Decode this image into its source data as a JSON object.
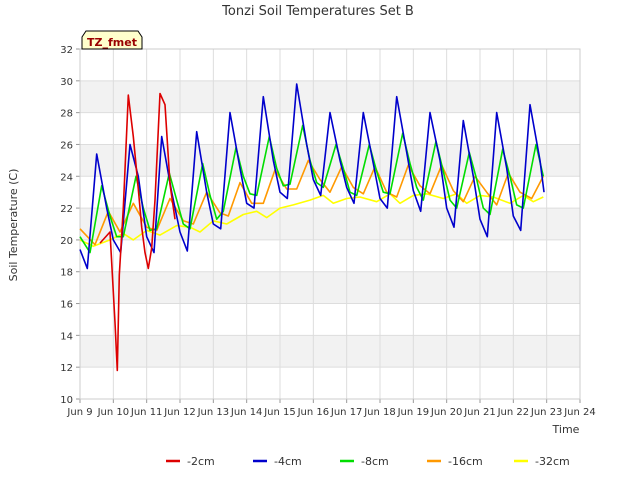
{
  "chart_data": {
    "type": "line",
    "title": "Tonzi Soil Temperatures Set B",
    "xlabel": "Time",
    "ylabel": "Soil Temperature (C)",
    "badge": "TZ_fmet",
    "xlim": [
      9,
      24
    ],
    "ylim": [
      10,
      32
    ],
    "x_ticks": [
      {
        "v": 9,
        "label": "Jun 9"
      },
      {
        "v": 10,
        "label": "Jun 10"
      },
      {
        "v": 11,
        "label": "Jun 11"
      },
      {
        "v": 12,
        "label": "Jun 12"
      },
      {
        "v": 13,
        "label": "Jun 13"
      },
      {
        "v": 14,
        "label": "Jun 14"
      },
      {
        "v": 15,
        "label": "Jun 15"
      },
      {
        "v": 16,
        "label": "Jun 16"
      },
      {
        "v": 17,
        "label": "Jun 17"
      },
      {
        "v": 18,
        "label": "Jun 18"
      },
      {
        "v": 19,
        "label": "Jun 19"
      },
      {
        "v": 20,
        "label": "Jun 20"
      },
      {
        "v": 21,
        "label": "Jun 21"
      },
      {
        "v": 22,
        "label": "Jun 22"
      },
      {
        "v": 23,
        "label": "Jun 23"
      },
      {
        "v": 24,
        "label": "Jun 24"
      }
    ],
    "y_ticks": [
      10,
      12,
      14,
      16,
      18,
      20,
      22,
      24,
      26,
      28,
      30,
      32
    ],
    "grid": true,
    "legend_position": "bottom",
    "series": [
      {
        "name": "-2cm",
        "color": "#dd0000",
        "x": [
          9.6,
          9.9,
          10.05,
          10.12,
          10.18,
          10.3,
          10.45,
          10.6,
          10.75,
          10.85,
          10.95,
          11.05,
          11.15,
          11.25,
          11.4,
          11.55,
          11.7,
          11.85
        ],
        "y": [
          19.8,
          20.5,
          14.8,
          11.8,
          17.8,
          22.0,
          29.1,
          26.5,
          23.2,
          20.8,
          19.2,
          18.2,
          19.5,
          22.5,
          29.2,
          28.5,
          23.5,
          21.3
        ]
      },
      {
        "name": "-4cm",
        "color": "#0000cc",
        "x": [
          9.0,
          9.22,
          9.5,
          9.8,
          10.0,
          10.22,
          10.5,
          10.75,
          11.0,
          11.22,
          11.45,
          11.75,
          12.0,
          12.22,
          12.5,
          12.8,
          13.0,
          13.22,
          13.5,
          13.8,
          14.0,
          14.22,
          14.5,
          14.8,
          15.0,
          15.22,
          15.5,
          15.8,
          16.0,
          16.22,
          16.5,
          16.8,
          17.0,
          17.22,
          17.5,
          17.8,
          18.0,
          18.22,
          18.5,
          18.8,
          19.0,
          19.22,
          19.5,
          19.8,
          20.0,
          20.22,
          20.5,
          20.8,
          21.0,
          21.22,
          21.5,
          21.8,
          22.0,
          22.22,
          22.5,
          22.8,
          22.92
        ],
        "y": [
          19.4,
          18.2,
          25.4,
          22.0,
          20.0,
          19.2,
          26.0,
          24.0,
          20.2,
          19.2,
          26.5,
          23.0,
          20.5,
          19.3,
          26.8,
          23.0,
          21.0,
          20.7,
          28.0,
          24.5,
          22.3,
          22.0,
          29.0,
          25.0,
          23.0,
          22.6,
          29.8,
          26.0,
          23.8,
          22.8,
          28.0,
          25.0,
          23.3,
          22.3,
          28.0,
          24.8,
          22.6,
          22.0,
          29.0,
          25.5,
          23.1,
          21.8,
          28.0,
          25.0,
          22.0,
          20.8,
          27.5,
          24.0,
          21.3,
          20.2,
          28.0,
          24.5,
          21.5,
          20.6,
          28.5,
          25.0,
          23.0
        ]
      },
      {
        "name": "-8cm",
        "color": "#00dd00",
        "x": [
          9.0,
          9.3,
          9.65,
          9.9,
          10.1,
          10.3,
          10.68,
          10.9,
          11.1,
          11.3,
          11.68,
          11.9,
          12.1,
          12.3,
          12.68,
          12.9,
          13.1,
          13.3,
          13.68,
          13.9,
          14.1,
          14.3,
          14.68,
          14.9,
          15.1,
          15.3,
          15.68,
          15.9,
          16.1,
          16.3,
          16.68,
          16.9,
          17.1,
          17.3,
          17.68,
          17.9,
          18.1,
          18.3,
          18.68,
          18.9,
          19.1,
          19.3,
          19.68,
          19.9,
          20.1,
          20.3,
          20.68,
          20.9,
          21.1,
          21.3,
          21.68,
          21.9,
          22.1,
          22.3,
          22.68,
          22.9
        ],
        "y": [
          20.2,
          19.2,
          23.4,
          21.5,
          20.2,
          20.2,
          24.0,
          22.0,
          20.6,
          20.7,
          24.2,
          22.5,
          21.0,
          20.7,
          24.8,
          22.8,
          21.3,
          21.8,
          25.8,
          24.0,
          22.9,
          22.8,
          26.5,
          24.5,
          23.4,
          23.5,
          27.2,
          25.0,
          23.6,
          23.3,
          26.0,
          24.5,
          23.0,
          22.8,
          26.0,
          24.3,
          23.0,
          22.9,
          26.7,
          24.8,
          23.3,
          22.5,
          26.2,
          24.3,
          22.5,
          22.0,
          25.5,
          23.8,
          22.0,
          21.6,
          25.7,
          24.0,
          22.2,
          22.0,
          26.0,
          24.0
        ]
      },
      {
        "name": "-16cm",
        "color": "#ff9900",
        "x": [
          9.0,
          9.45,
          9.85,
          10.2,
          10.6,
          11.0,
          11.3,
          11.7,
          12.1,
          12.4,
          12.8,
          13.2,
          13.45,
          13.8,
          14.15,
          14.5,
          14.85,
          15.2,
          15.5,
          15.85,
          16.2,
          16.5,
          16.85,
          17.2,
          17.5,
          17.85,
          18.2,
          18.5,
          18.85,
          19.2,
          19.5,
          19.85,
          20.2,
          20.5,
          20.85,
          21.2,
          21.5,
          21.85,
          22.2,
          22.55,
          22.9
        ],
        "y": [
          20.7,
          19.7,
          21.8,
          20.5,
          22.3,
          20.8,
          20.6,
          22.6,
          21.2,
          21.0,
          23.0,
          21.7,
          21.5,
          23.6,
          22.3,
          22.3,
          24.4,
          23.2,
          23.2,
          25.0,
          23.8,
          23.0,
          24.6,
          23.3,
          22.9,
          24.6,
          23.0,
          22.7,
          24.7,
          23.4,
          22.9,
          24.7,
          23.1,
          22.4,
          24.0,
          23.0,
          22.2,
          24.2,
          23.0,
          22.6,
          24.0
        ]
      },
      {
        "name": "-32cm",
        "color": "#ffff00",
        "x": [
          9.0,
          9.4,
          9.9,
          10.3,
          10.6,
          11.0,
          11.4,
          11.9,
          12.3,
          12.6,
          13.0,
          13.4,
          13.9,
          14.3,
          14.6,
          15.0,
          15.4,
          15.9,
          16.3,
          16.6,
          17.0,
          17.4,
          17.9,
          18.3,
          18.6,
          19.0,
          19.4,
          19.9,
          20.3,
          20.6,
          21.0,
          21.4,
          21.9,
          22.3,
          22.6,
          22.9
        ],
        "y": [
          20.0,
          19.6,
          20.0,
          20.4,
          20.0,
          20.6,
          20.3,
          20.9,
          20.8,
          20.5,
          21.2,
          21.0,
          21.6,
          21.8,
          21.4,
          22.0,
          22.2,
          22.5,
          22.8,
          22.3,
          22.6,
          22.7,
          22.4,
          22.9,
          22.3,
          22.8,
          22.9,
          22.6,
          22.9,
          22.3,
          22.8,
          22.7,
          22.3,
          22.8,
          22.4,
          22.7
        ]
      }
    ]
  }
}
